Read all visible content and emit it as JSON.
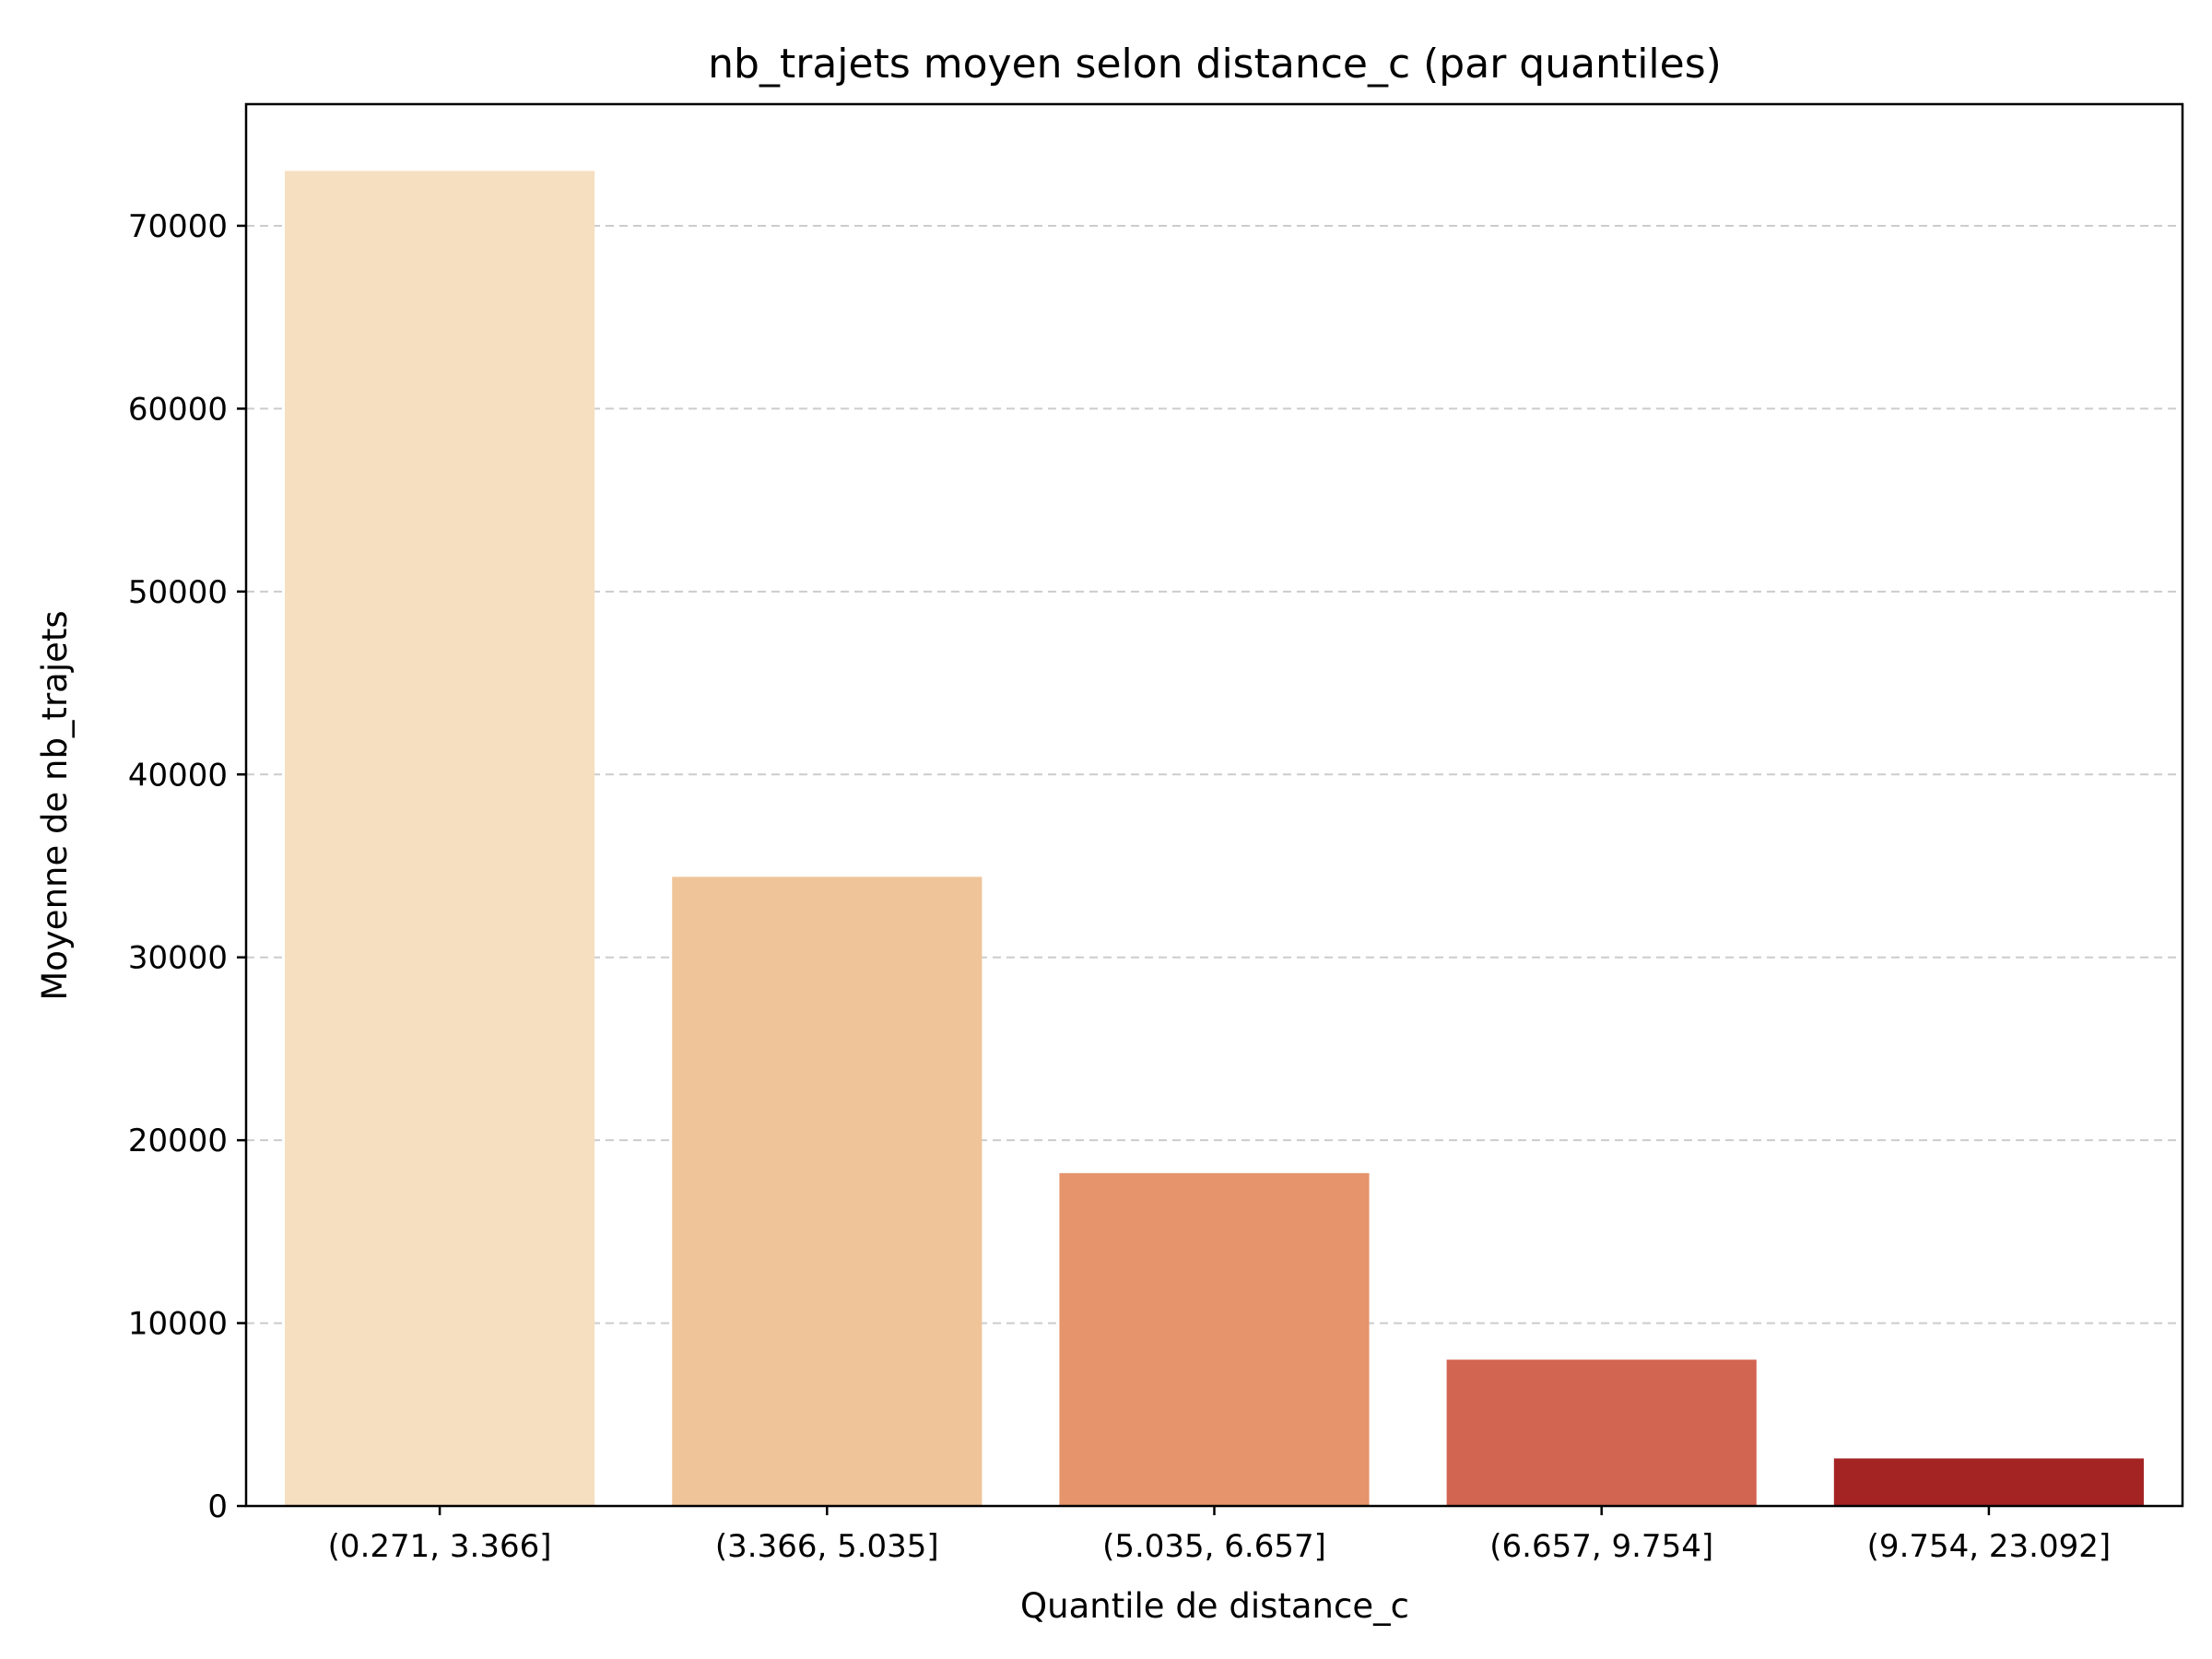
{
  "chart_data": {
    "type": "bar",
    "title": "nb_trajets moyen selon distance_c (par quantiles)",
    "xlabel": "Quantile de distance_c",
    "ylabel": "Moyenne de nb_trajets",
    "categories": [
      "(0.271, 3.366]",
      "(3.366, 5.035]",
      "(5.035, 6.657]",
      "(6.657, 9.754]",
      "(9.754, 23.092]"
    ],
    "values": [
      73000,
      34400,
      18200,
      8000,
      2600
    ],
    "colors": [
      "#f5dfc0",
      "#efc499",
      "#e5946c",
      "#d26452",
      "#a42423"
    ],
    "yticks": [
      0,
      10000,
      20000,
      30000,
      40000,
      50000,
      60000,
      70000
    ],
    "ylim": [
      0,
      76650
    ],
    "grid": "y-dashed",
    "legend": "none"
  }
}
